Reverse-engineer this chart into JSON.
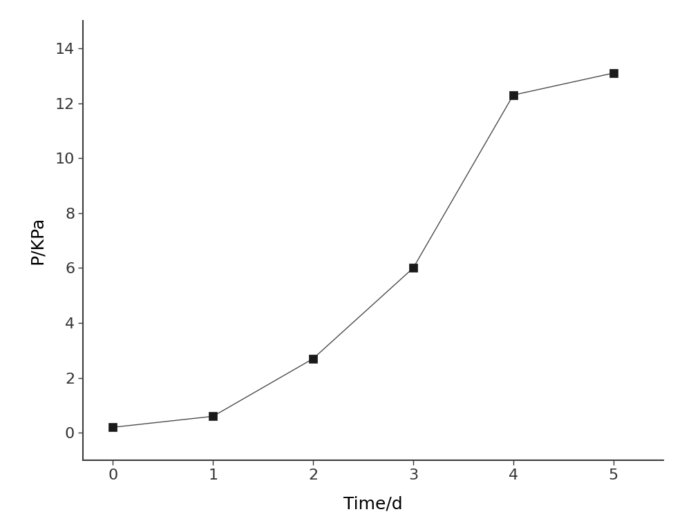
{
  "x": [
    0,
    1,
    2,
    3,
    4,
    5
  ],
  "y": [
    0.2,
    0.6,
    2.7,
    6.0,
    12.3,
    13.1
  ],
  "xlabel": "Time/d",
  "ylabel": "P/KPa",
  "xlim": [
    -0.3,
    5.5
  ],
  "ylim": [
    -1,
    15
  ],
  "xticks": [
    0,
    1,
    2,
    3,
    4,
    5
  ],
  "yticks": [
    0,
    2,
    4,
    6,
    8,
    10,
    12,
    14
  ],
  "line_color": "#4a4a4a",
  "marker": "s",
  "marker_color": "#1a1a1a",
  "marker_size": 9,
  "line_width": 1.0,
  "line_style": "-",
  "xlabel_fontsize": 18,
  "ylabel_fontsize": 18,
  "tick_fontsize": 16,
  "background_color": "#ffffff",
  "spine_color": "#3c3c3c"
}
